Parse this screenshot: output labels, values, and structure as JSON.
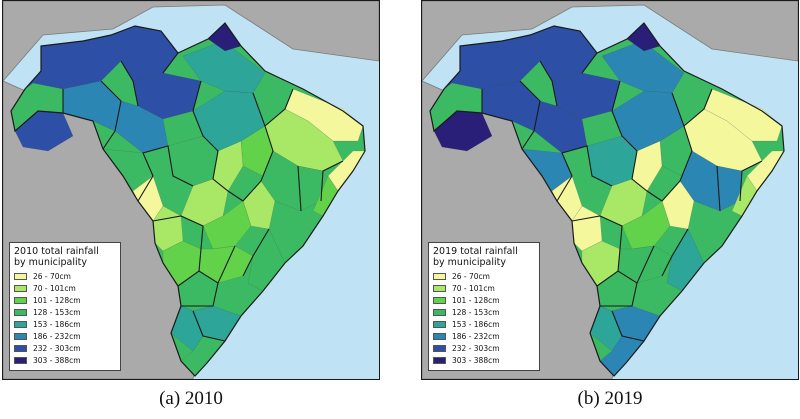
{
  "panels": [
    {
      "id": "a",
      "caption": "(a) 2010",
      "legend": {
        "title_line1": "2010 total rainfall",
        "title_line2": "by municipality"
      },
      "class_fill": [
        4,
        0,
        1,
        0,
        2,
        1,
        3,
        2,
        1,
        6,
        6,
        7,
        6,
        5,
        6,
        5,
        4,
        3,
        3,
        0,
        1,
        2,
        1,
        2,
        2,
        3,
        3,
        4,
        4,
        3
      ]
    },
    {
      "id": "b",
      "caption": "(b) 2019",
      "legend": {
        "title_line1": "2019 total rainfall",
        "title_line2": "by municipality"
      },
      "class_fill": [
        5,
        0,
        0,
        0,
        3,
        0,
        5,
        1,
        0,
        6,
        6,
        7,
        7,
        6,
        6,
        6,
        5,
        5,
        4,
        0,
        0,
        1,
        1,
        2,
        3,
        4,
        3,
        5,
        4,
        5
      ]
    }
  ],
  "classes": [
    {
      "label": "26 - 70cm",
      "color": "#f4f79c"
    },
    {
      "label": "70 - 101cm",
      "color": "#a8e866"
    },
    {
      "label": "101 - 128cm",
      "color": "#62d24a"
    },
    {
      "label": "128 - 153cm",
      "color": "#3cba63"
    },
    {
      "label": "153 - 186cm",
      "color": "#2da598"
    },
    {
      "label": "186 - 232cm",
      "color": "#2c86b4"
    },
    {
      "label": "232 - 303cm",
      "color": "#2d4fa6"
    },
    {
      "label": "303 - 388cm",
      "color": "#2a1f78"
    }
  ],
  "colors": {
    "ocean": "#bfe3f4",
    "neighbor_land": "#aaaaaa",
    "state_border": "#1a1a1a"
  }
}
